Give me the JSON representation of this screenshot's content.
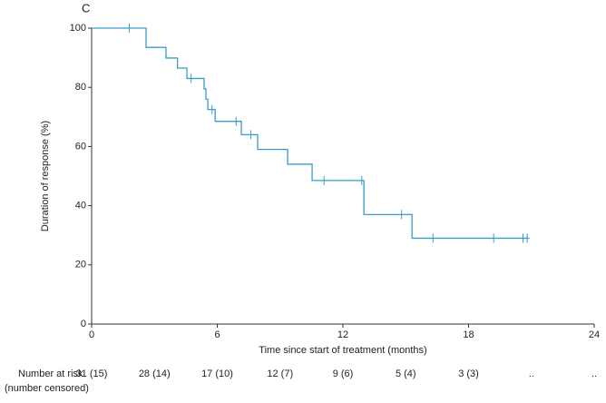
{
  "chart_data": {
    "type": "step",
    "panel_label": "C",
    "xlabel": "Time since start of treatment (months)",
    "ylabel": "Duration of response (%)",
    "xlim": [
      0,
      24
    ],
    "ylim": [
      0,
      100
    ],
    "xticks": [
      0,
      6,
      12,
      18,
      24
    ],
    "yticks": [
      0,
      20,
      40,
      60,
      80,
      100
    ],
    "series": [
      {
        "color": "#3a9cc8",
        "x": [
          0,
          2.6,
          3.55,
          4.1,
          4.55,
          5.37,
          5.46,
          5.55,
          5.9,
          7.15,
          7.93,
          9.36,
          10.53,
          13.0,
          15.3,
          20.9
        ],
        "values": [
          100,
          93.5,
          89.9,
          86.5,
          83,
          79.5,
          76,
          72.5,
          68.5,
          64,
          59,
          54,
          48.5,
          37,
          29,
          29
        ]
      },
      {
        "type": "censor",
        "color": "#3a9cc8",
        "x": [
          1.8,
          4.75,
          5.75,
          6.9,
          7.6,
          11.1,
          12.9,
          14.8,
          16.3,
          19.2,
          20.6,
          20.8
        ],
        "values": [
          100,
          83,
          72.5,
          68.5,
          64,
          48.5,
          48.5,
          37,
          29,
          29,
          29,
          29
        ]
      }
    ],
    "risk_table": {
      "title": "Number at risk",
      "subtitle": "(number censored)",
      "labels": [
        "31 (15)",
        "28 (14)",
        "17 (10)",
        "12 (7)",
        "9 (6)",
        "5 (4)",
        "3 (3)",
        "..",
        ".."
      ]
    }
  }
}
